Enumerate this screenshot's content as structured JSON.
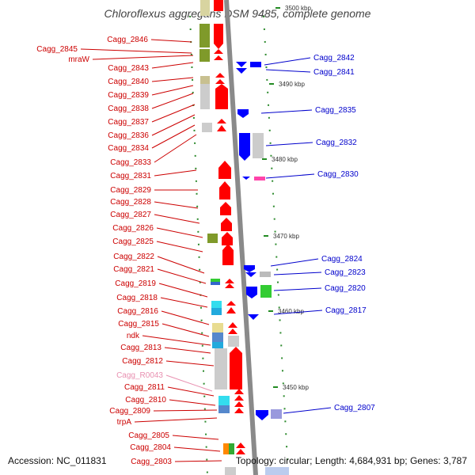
{
  "title": "Chloroflexus aggregans DSM 9485, complete genome",
  "accession": "Accession: NC_011831",
  "summary": "Topology: circular; Length: 4,684,931 bp; Genes: 3,787",
  "colors": {
    "left_label": "#cc0000",
    "right_label": "#0000cc",
    "rna_label": "#e88fb0",
    "forward_gene": "#ff0000",
    "reverse_gene": "#0000ff",
    "axis": "#888888",
    "tick": "#228b22"
  },
  "ticks": [
    {
      "label": "3500 kbp"
    },
    {
      "label": "3490 kbp"
    },
    {
      "label": "3480 kbp"
    },
    {
      "label": "3470 kbp"
    },
    {
      "label": "3460 kbp"
    },
    {
      "label": "3450 kbp"
    }
  ],
  "left_genes": [
    {
      "name": "Cagg_2846",
      "type": "gene"
    },
    {
      "name": "Cagg_2845",
      "type": "gene"
    },
    {
      "name": "mraW",
      "type": "gene"
    },
    {
      "name": "Cagg_2843",
      "type": "gene"
    },
    {
      "name": "Cagg_2840",
      "type": "gene"
    },
    {
      "name": "Cagg_2839",
      "type": "gene"
    },
    {
      "name": "Cagg_2838",
      "type": "gene"
    },
    {
      "name": "Cagg_2837",
      "type": "gene"
    },
    {
      "name": "Cagg_2836",
      "type": "gene"
    },
    {
      "name": "Cagg_2834",
      "type": "gene"
    },
    {
      "name": "Cagg_2833",
      "type": "gene"
    },
    {
      "name": "Cagg_2831",
      "type": "gene"
    },
    {
      "name": "Cagg_2829",
      "type": "gene"
    },
    {
      "name": "Cagg_2828",
      "type": "gene"
    },
    {
      "name": "Cagg_2827",
      "type": "gene"
    },
    {
      "name": "Cagg_2826",
      "type": "gene"
    },
    {
      "name": "Cagg_2825",
      "type": "gene"
    },
    {
      "name": "Cagg_2822",
      "type": "gene"
    },
    {
      "name": "Cagg_2821",
      "type": "gene"
    },
    {
      "name": "Cagg_2819",
      "type": "gene"
    },
    {
      "name": "Cagg_2818",
      "type": "gene"
    },
    {
      "name": "Cagg_2816",
      "type": "gene"
    },
    {
      "name": "Cagg_2815",
      "type": "gene"
    },
    {
      "name": "ndk",
      "type": "gene"
    },
    {
      "name": "Cagg_2813",
      "type": "gene"
    },
    {
      "name": "Cagg_2812",
      "type": "gene"
    },
    {
      "name": "Cagg_R0043",
      "type": "rna"
    },
    {
      "name": "Cagg_2811",
      "type": "gene"
    },
    {
      "name": "Cagg_2810",
      "type": "gene"
    },
    {
      "name": "Cagg_2809",
      "type": "gene"
    },
    {
      "name": "trpA",
      "type": "gene"
    },
    {
      "name": "Cagg_2805",
      "type": "gene"
    },
    {
      "name": "Cagg_2804",
      "type": "gene"
    },
    {
      "name": "Cagg_2803",
      "type": "gene"
    }
  ],
  "right_genes": [
    {
      "name": "Cagg_2842"
    },
    {
      "name": "Cagg_2841"
    },
    {
      "name": "Cagg_2835"
    },
    {
      "name": "Cagg_2832"
    },
    {
      "name": "Cagg_2830"
    },
    {
      "name": "Cagg_2824"
    },
    {
      "name": "Cagg_2823"
    },
    {
      "name": "Cagg_2820"
    },
    {
      "name": "Cagg_2817"
    },
    {
      "name": "Cagg_2807"
    }
  ]
}
